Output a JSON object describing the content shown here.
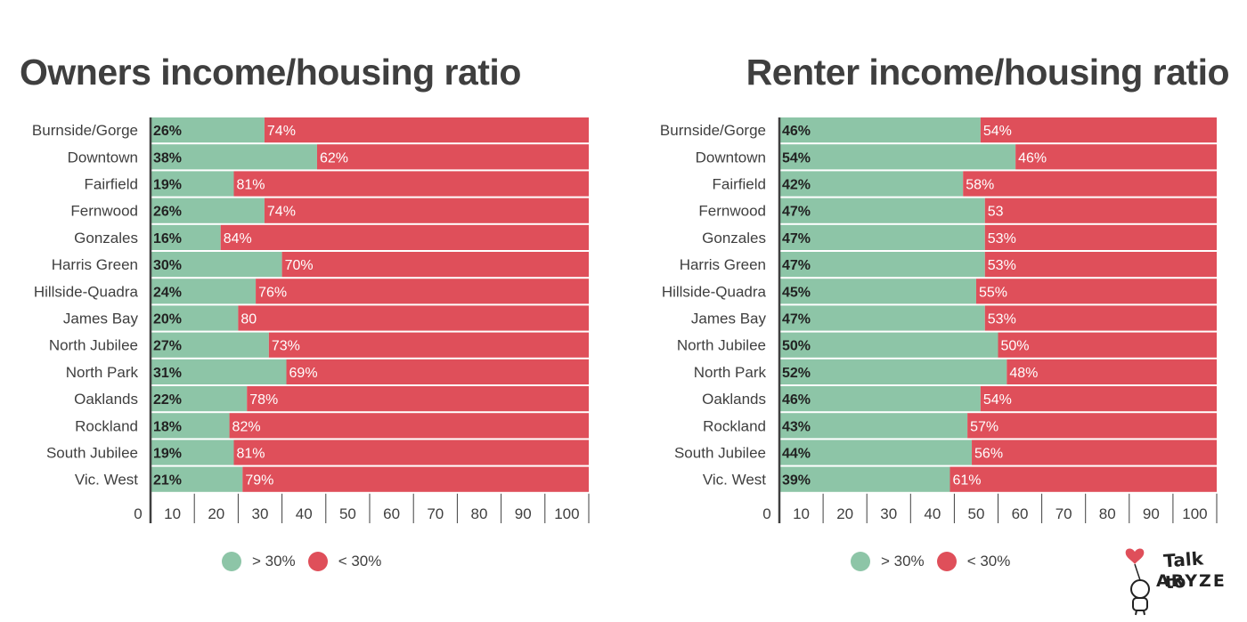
{
  "colors": {
    "above": "#8dc5a7",
    "below": "#df4f5a",
    "axis": "#3f3f3f",
    "text": "#3f3f3f"
  },
  "legend": {
    "above_label": "> 30%",
    "below_label": "< 30%"
  },
  "logo": {
    "line1": "Talk to",
    "line2": "ARYZE"
  },
  "chart_data": [
    {
      "type": "bar",
      "orientation": "horizontal",
      "stacked": true,
      "title": "Owners income/housing ratio",
      "categories": [
        "Burnside/Gorge",
        "Downtown",
        "Fairfield",
        "Fernwood",
        "Gonzales",
        "Harris Green",
        "Hillside-Quadra",
        "James Bay",
        "North Jubilee",
        "North Park",
        "Oaklands",
        "Rockland",
        "South Jubilee",
        "Vic. West"
      ],
      "series": [
        {
          "name": "> 30%",
          "values": [
            26,
            38,
            19,
            26,
            16,
            30,
            24,
            20,
            27,
            31,
            22,
            18,
            19,
            21
          ],
          "labels": [
            "26%",
            "38%",
            "19%",
            "26%",
            "16%",
            "30%",
            "24%",
            "20%",
            "27%",
            "31%",
            "22%",
            "18%",
            "19%",
            "21%"
          ]
        },
        {
          "name": "< 30%",
          "values": [
            74,
            62,
            81,
            74,
            84,
            70,
            76,
            80,
            73,
            69,
            78,
            82,
            81,
            79
          ],
          "labels": [
            "74%",
            "62%",
            "81%",
            "74%",
            "84%",
            "70%",
            "76%",
            "80",
            "73%",
            "69%",
            "78%",
            "82%",
            "81%",
            "79%"
          ]
        }
      ],
      "xlim": [
        0,
        100
      ],
      "ticks": [
        0,
        10,
        20,
        30,
        40,
        50,
        60,
        70,
        80,
        90,
        100
      ],
      "legend_position": "bottom"
    },
    {
      "type": "bar",
      "orientation": "horizontal",
      "stacked": true,
      "title": "Renter income/housing ratio",
      "categories": [
        "Burnside/Gorge",
        "Downtown",
        "Fairfield",
        "Fernwood",
        "Gonzales",
        "Harris Green",
        "Hillside-Quadra",
        "James Bay",
        "North Jubilee",
        "North Park",
        "Oaklands",
        "Rockland",
        "South Jubilee",
        "Vic. West"
      ],
      "series": [
        {
          "name": "> 30%",
          "values": [
            46,
            54,
            42,
            47,
            47,
            47,
            45,
            47,
            50,
            52,
            46,
            43,
            44,
            39
          ],
          "labels": [
            "46%",
            "54%",
            "42%",
            "47%",
            "47%",
            "47%",
            "45%",
            "47%",
            "50%",
            "52%",
            "46%",
            "43%",
            "44%",
            "39%"
          ]
        },
        {
          "name": "< 30%",
          "values": [
            54,
            46,
            58,
            53,
            53,
            53,
            55,
            53,
            50,
            48,
            54,
            57,
            56,
            61
          ],
          "labels": [
            "54%",
            "46%",
            "58%",
            "53",
            "53%",
            "53%",
            "55%",
            "53%",
            "50%",
            "48%",
            "54%",
            "57%",
            "56%",
            "61%"
          ]
        }
      ],
      "xlim": [
        0,
        100
      ],
      "ticks": [
        0,
        10,
        20,
        30,
        40,
        50,
        60,
        70,
        80,
        90,
        100
      ],
      "legend_position": "bottom"
    }
  ]
}
